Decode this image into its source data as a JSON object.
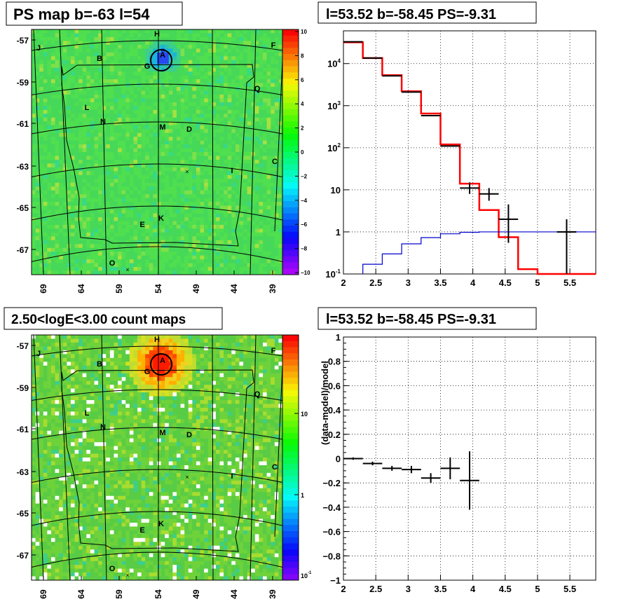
{
  "panels": {
    "ps_map": {
      "title": "PS map b=-63 l=54",
      "colorbar_ticks": [
        "10",
        "8",
        "6",
        "4",
        "2",
        "0",
        "−2",
        "−4",
        "−6",
        "−8",
        "−10"
      ],
      "y_ticks": [
        "-57",
        "-59",
        "-61",
        "-63",
        "-65",
        "-67"
      ],
      "x_ticks": [
        "69",
        "64",
        "59",
        "54",
        "49",
        "44",
        "39"
      ],
      "source_labels": [
        "J",
        "B",
        "H",
        "A",
        "G",
        "F",
        "Q",
        "L",
        "N",
        "M",
        "D",
        "I",
        "C",
        "E",
        "K",
        "O"
      ]
    },
    "count_map": {
      "title": "2.50<logE<3.00 count maps",
      "colorbar_ticks": [
        "10",
        "1",
        "10"
      ],
      "colorbar_tick_sup": "-1",
      "y_ticks": [
        "-57",
        "-59",
        "-61",
        "-63",
        "-65",
        "-67"
      ],
      "x_ticks": [
        "69",
        "64",
        "59",
        "54",
        "49",
        "44",
        "39"
      ]
    },
    "spectrum": {
      "title": "l=53.52 b=-58.45 PS=-9.31"
    },
    "residual": {
      "title": "l=53.52 b=-58.45 PS=-9.31"
    }
  },
  "chart_data": [
    {
      "type": "heatmap",
      "title": "PS map b=-63 l=54",
      "ylabel": "",
      "xlabel": "",
      "xlim": [
        70,
        38
      ],
      "ylim": [
        -68,
        -56.5
      ],
      "zlim": [
        -10,
        10
      ],
      "colors": {
        "bg": "#4fe04f",
        "hot": "#2040ff"
      }
    },
    {
      "type": "heatmap",
      "title": "2.50<logE<3.00 count maps",
      "xlim": [
        70,
        38
      ],
      "ylim": [
        -68,
        -56.5
      ],
      "zscale": "log",
      "colors": {
        "bg": "#7ed23a",
        "hot": "#ff2000"
      }
    },
    {
      "type": "line",
      "title": "l=53.52 b=-58.45 PS=-9.31",
      "xlabel": "",
      "ylabel": "",
      "xlim": [
        2,
        5.9
      ],
      "ylim": [
        0.1,
        60000
      ],
      "yscale": "log",
      "x_ticks": [
        2,
        2.5,
        3,
        3.5,
        4,
        4.5,
        5,
        5.5
      ],
      "y_ticks": [
        {
          "v": 0.1,
          "l": "10",
          "sup": "-1"
        },
        {
          "v": 1,
          "l": "1"
        },
        {
          "v": 10,
          "l": "10"
        },
        {
          "v": 100,
          "l": "10",
          "sup": "2"
        },
        {
          "v": 1000,
          "l": "10",
          "sup": "3"
        },
        {
          "v": 10000,
          "l": "10",
          "sup": "4"
        }
      ],
      "grid": true,
      "series": [
        {
          "color": "#ff0000",
          "step_edges": [
            2,
            2.3,
            2.6,
            2.9,
            3.2,
            3.5,
            3.8,
            4.1,
            4.4,
            4.7,
            5.0,
            5.9
          ],
          "values": [
            32000,
            13500,
            5300,
            2200,
            650,
            120,
            14,
            3.3,
            0.75,
            0.13,
            0.1
          ]
        },
        {
          "color": "#0000cc",
          "step_edges": [
            2.3,
            2.6,
            2.9,
            3.2,
            3.5,
            3.8,
            4.1,
            4.4,
            4.7,
            5.0,
            5.9
          ],
          "values": [
            0.17,
            0.3,
            0.52,
            0.73,
            0.9,
            0.98,
            1.0,
            1.0,
            1.0,
            1.0
          ]
        },
        {
          "color": "#000000",
          "points": [
            {
              "x": 2.15,
              "y": 33000,
              "xerr": 0.15
            },
            {
              "x": 2.45,
              "y": 13500,
              "xerr": 0.15
            },
            {
              "x": 2.75,
              "y": 5100,
              "xerr": 0.15
            },
            {
              "x": 3.05,
              "y": 2100,
              "xerr": 0.15
            },
            {
              "x": 3.35,
              "y": 580,
              "xerr": 0.15
            },
            {
              "x": 3.65,
              "y": 110,
              "xerr": 0.15
            },
            {
              "x": 3.95,
              "y": 11,
              "xerr": 0.15,
              "ylo": 8,
              "yhi": 15
            },
            {
              "x": 4.25,
              "y": 8,
              "xerr": 0.15,
              "ylo": 5.5,
              "yhi": 11
            },
            {
              "x": 4.55,
              "y": 2,
              "xerr": 0.15,
              "ylo": 0.55,
              "yhi": 4.5
            },
            {
              "x": 5.45,
              "y": 1,
              "xerr": 0.15,
              "ylo": 0.1,
              "yhi": 2
            }
          ]
        }
      ]
    },
    {
      "type": "scatter",
      "title": "l=53.52 b=-58.45 PS=-9.31",
      "ylabel": "(data-model)/model",
      "xlim": [
        2,
        5.9
      ],
      "ylim": [
        -1,
        1
      ],
      "x_ticks": [
        2,
        2.5,
        3,
        3.5,
        4,
        4.5,
        5,
        5.5
      ],
      "y_ticks": [
        1,
        0.8,
        0.6,
        0.4,
        0.2,
        0,
        -0.2,
        -0.4,
        -0.6,
        -0.8,
        -1
      ],
      "grid": true,
      "points": [
        {
          "x": 2.15,
          "y": 0.0,
          "xerr": 0.15,
          "yerr": 0.01
        },
        {
          "x": 2.45,
          "y": -0.04,
          "xerr": 0.15,
          "yerr": 0.015
        },
        {
          "x": 2.75,
          "y": -0.08,
          "xerr": 0.15,
          "yerr": 0.02
        },
        {
          "x": 3.05,
          "y": -0.09,
          "xerr": 0.15,
          "yerr": 0.03
        },
        {
          "x": 3.35,
          "y": -0.16,
          "xerr": 0.15,
          "yerr": 0.04
        },
        {
          "x": 3.65,
          "y": -0.08,
          "xerr": 0.15,
          "yerr": 0.09
        },
        {
          "x": 3.95,
          "y": -0.18,
          "xerr": 0.15,
          "yerr": 0.24
        }
      ]
    }
  ]
}
